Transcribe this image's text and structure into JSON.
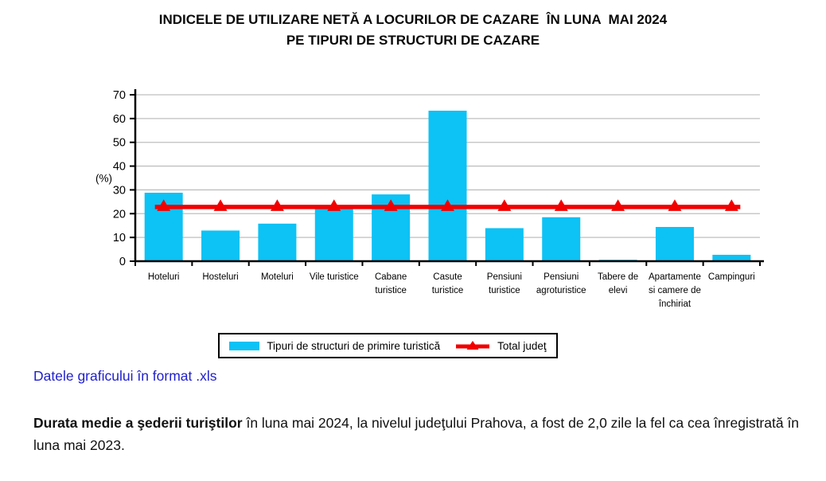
{
  "title": {
    "line1": "INDICELE DE UTILIZARE NETĂ A LOCURILOR DE CAZARE  ÎN LUNA  MAI 2024",
    "line2": "PE TIPURI DE STRUCTURI DE CAZARE"
  },
  "chart_data": {
    "type": "bar",
    "categories": [
      "Hoteluri",
      "Hosteluri",
      "Moteluri",
      "Vile turistice",
      "Cabane turistice",
      "Casute turistice",
      "Pensiuni turistice",
      "Pensiuni agroturistice",
      "Tabere de elevi",
      "Apartamente si camere de închiriat",
      "Campinguri"
    ],
    "category_lines": [
      [
        "Hoteluri"
      ],
      [
        "Hosteluri"
      ],
      [
        "Moteluri"
      ],
      [
        "Vile turistice"
      ],
      [
        "Cabane",
        "turistice"
      ],
      [
        "Casute",
        "turistice"
      ],
      [
        "Pensiuni",
        "turistice"
      ],
      [
        "Pensiuni",
        "agroturistice"
      ],
      [
        "Tabere de",
        "elevi"
      ],
      [
        "Apartamente",
        "si camere de",
        "închiriat"
      ],
      [
        "Campinguri"
      ]
    ],
    "series": [
      {
        "name": "Tipuri de structuri de primire turistică",
        "type": "bar",
        "color": "#0DC2F5",
        "values": [
          28.8,
          12.9,
          15.8,
          22.0,
          28.1,
          63.3,
          13.9,
          18.5,
          0.6,
          14.4,
          2.7
        ]
      },
      {
        "name": "Total judeţ",
        "type": "line",
        "marker": "triangle-up",
        "color": "#F20000",
        "values": [
          22.8,
          22.8,
          22.8,
          22.8,
          22.8,
          22.8,
          22.8,
          22.8,
          22.8,
          22.8,
          22.8
        ]
      }
    ],
    "ylabel": "(%)",
    "ylim": [
      0,
      70
    ],
    "ytick_step": 10,
    "grid": true,
    "gridline_color": "#BFBFBF",
    "axis_color": "#000000",
    "legend_position": "bottom"
  },
  "link": {
    "label": "Datele graficului în format .xls"
  },
  "paragraph": {
    "bold": "Durata medie a şederii turiştilor",
    "rest": " în luna mai 2024, la nivelul judeţului Prahova, a fost de 2,0 zile la fel ca cea înregistrată în luna mai 2023."
  }
}
